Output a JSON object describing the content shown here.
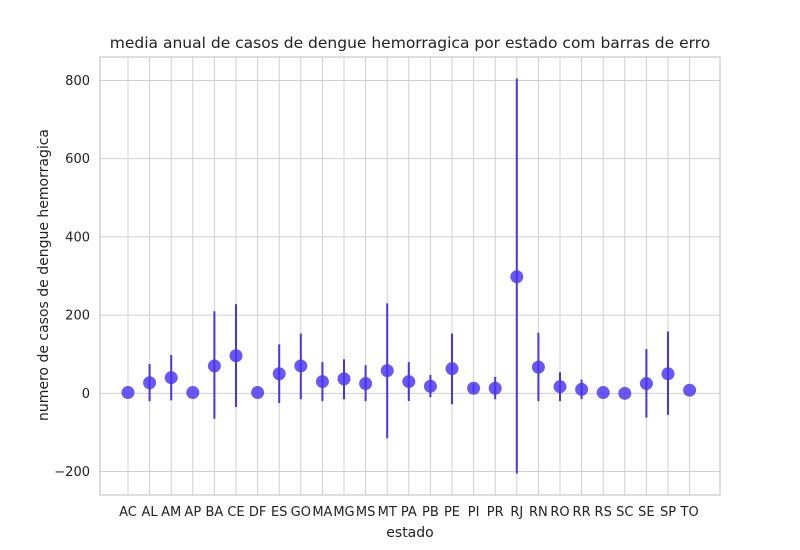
{
  "chart_data": {
    "type": "scatter",
    "title": "media anual de casos de dengue hemorragica por estado com barras de erro",
    "xlabel": "estado",
    "ylabel": "numero de casos de dengue hemorragica",
    "ylim": [
      -260,
      860
    ],
    "yticks": [
      -200,
      0,
      200,
      400,
      600,
      800
    ],
    "ytick_labels": [
      "−200",
      "0",
      "200",
      "400",
      "600",
      "800"
    ],
    "grid": true,
    "categories": [
      "AC",
      "AL",
      "AM",
      "AP",
      "BA",
      "CE",
      "DF",
      "ES",
      "GO",
      "MA",
      "MG",
      "MS",
      "MT",
      "PA",
      "PB",
      "PE",
      "PI",
      "PR",
      "RJ",
      "RN",
      "RO",
      "RR",
      "RS",
      "SC",
      "SE",
      "SP",
      "TO"
    ],
    "series": [
      {
        "values": [
          2,
          27,
          40,
          2,
          70,
          96,
          2,
          50,
          70,
          30,
          37,
          25,
          58,
          30,
          18,
          63,
          13,
          13,
          298,
          67,
          17,
          10,
          2,
          0,
          25,
          50,
          8
        ],
        "err_low": [
          2,
          -20,
          -18,
          2,
          -65,
          -35,
          2,
          -25,
          -15,
          -20,
          -15,
          -20,
          -115,
          -20,
          -10,
          -28,
          3,
          -15,
          -205,
          -20,
          -20,
          -15,
          2,
          0,
          -62,
          -55,
          8
        ],
        "err_high": [
          2,
          75,
          98,
          2,
          210,
          228,
          2,
          125,
          153,
          80,
          87,
          72,
          230,
          80,
          47,
          153,
          23,
          42,
          805,
          155,
          54,
          35,
          2,
          0,
          113,
          158,
          8
        ]
      }
    ],
    "colors": {
      "marker": "#4b32f0",
      "errorbar": "#4b32f0",
      "grid": "#d0d0d0",
      "axes_edge": "#c8c8c8",
      "background": "#ffffff"
    }
  }
}
